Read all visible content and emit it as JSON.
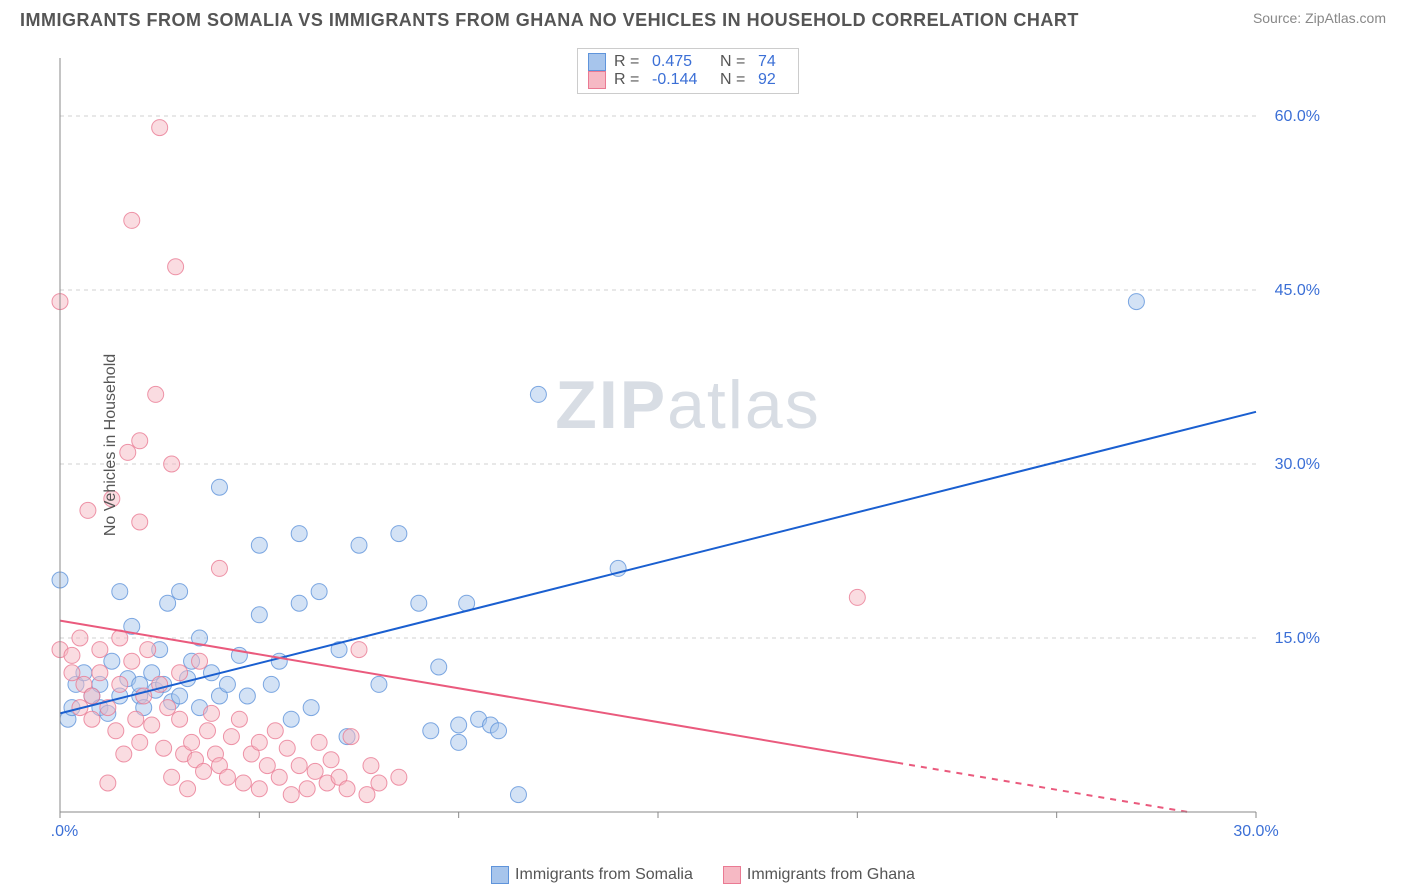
{
  "header": {
    "title": "IMMIGRANTS FROM SOMALIA VS IMMIGRANTS FROM GHANA NO VEHICLES IN HOUSEHOLD CORRELATION CHART",
    "source": "Source: ZipAtlas.com"
  },
  "watermark": {
    "bold": "ZIP",
    "rest": "atlas"
  },
  "ylabel": "No Vehicles in Household",
  "chart": {
    "type": "scatter",
    "xlim": [
      0,
      30
    ],
    "ylim": [
      0,
      65
    ],
    "xticks": [
      0,
      5,
      10,
      15,
      20,
      25,
      30
    ],
    "xtick_labels": [
      "0.0%",
      "",
      "",
      "",
      "",
      "",
      "30.0%"
    ],
    "yticks": [
      15,
      30,
      45,
      60
    ],
    "ytick_labels": [
      "15.0%",
      "30.0%",
      "45.0%",
      "60.0%"
    ],
    "background_color": "#ffffff",
    "grid_color": "#d0d0d0",
    "axis_color": "#888888",
    "tick_label_color": "#3b6fd6",
    "marker_radius": 8,
    "marker_opacity": 0.5,
    "line_width": 2
  },
  "series": [
    {
      "key": "somalia",
      "label": "Immigrants from Somalia",
      "color_fill": "#a7c5ec",
      "color_stroke": "#5f94db",
      "line_color": "#1a5fd0",
      "R": "0.475",
      "N": "74",
      "trend": {
        "x1": 0,
        "y1": 8.5,
        "x2": 30,
        "y2": 34.5,
        "dash_from_x": 30
      },
      "points": [
        [
          0,
          20
        ],
        [
          0.2,
          8
        ],
        [
          0.3,
          9
        ],
        [
          0.4,
          11
        ],
        [
          0.6,
          12
        ],
        [
          0.8,
          10
        ],
        [
          1,
          9
        ],
        [
          1,
          11
        ],
        [
          1.2,
          8.5
        ],
        [
          1.3,
          13
        ],
        [
          1.5,
          19
        ],
        [
          1.5,
          10
        ],
        [
          1.7,
          11.5
        ],
        [
          1.8,
          16
        ],
        [
          2,
          10
        ],
        [
          2,
          11
        ],
        [
          2.1,
          9
        ],
        [
          2.3,
          12
        ],
        [
          2.4,
          10.5
        ],
        [
          2.5,
          14
        ],
        [
          2.6,
          11
        ],
        [
          2.7,
          18
        ],
        [
          2.8,
          9.5
        ],
        [
          3,
          19
        ],
        [
          3,
          10
        ],
        [
          3.2,
          11.5
        ],
        [
          3.3,
          13
        ],
        [
          3.5,
          15
        ],
        [
          3.5,
          9
        ],
        [
          3.8,
          12
        ],
        [
          4,
          28
        ],
        [
          4,
          10
        ],
        [
          4.2,
          11
        ],
        [
          4.5,
          13.5
        ],
        [
          4.7,
          10
        ],
        [
          5,
          23
        ],
        [
          5,
          17
        ],
        [
          5.3,
          11
        ],
        [
          5.5,
          13
        ],
        [
          5.8,
          8
        ],
        [
          6,
          18
        ],
        [
          6,
          24
        ],
        [
          6.3,
          9
        ],
        [
          6.5,
          19
        ],
        [
          7,
          14
        ],
        [
          7.2,
          6.5
        ],
        [
          7.5,
          23
        ],
        [
          8,
          11
        ],
        [
          8.5,
          24
        ],
        [
          9,
          18
        ],
        [
          9.3,
          7
        ],
        [
          9.5,
          12.5
        ],
        [
          10,
          6
        ],
        [
          10,
          7.5
        ],
        [
          10.2,
          18
        ],
        [
          10.5,
          8
        ],
        [
          10.8,
          7.5
        ],
        [
          11,
          7
        ],
        [
          11.5,
          1.5
        ],
        [
          12,
          36
        ],
        [
          14,
          21
        ],
        [
          27,
          44
        ]
      ]
    },
    {
      "key": "ghana",
      "label": "Immigrants from Ghana",
      "color_fill": "#f6b9c4",
      "color_stroke": "#ea7a93",
      "line_color": "#ea5a7d",
      "R": "-0.144",
      "N": "92",
      "trend": {
        "x1": 0,
        "y1": 16.5,
        "x2": 30,
        "y2": -1,
        "dash_from_x": 21
      },
      "points": [
        [
          0,
          14
        ],
        [
          0,
          44
        ],
        [
          0.3,
          12
        ],
        [
          0.3,
          13.5
        ],
        [
          0.5,
          9
        ],
        [
          0.5,
          15
        ],
        [
          0.6,
          11
        ],
        [
          0.7,
          26
        ],
        [
          0.8,
          10
        ],
        [
          0.8,
          8
        ],
        [
          1,
          12
        ],
        [
          1,
          14
        ],
        [
          1.2,
          2.5
        ],
        [
          1.2,
          9
        ],
        [
          1.3,
          27
        ],
        [
          1.4,
          7
        ],
        [
          1.5,
          15
        ],
        [
          1.5,
          11
        ],
        [
          1.6,
          5
        ],
        [
          1.7,
          31
        ],
        [
          1.8,
          51
        ],
        [
          1.8,
          13
        ],
        [
          1.9,
          8
        ],
        [
          2,
          25
        ],
        [
          2,
          32
        ],
        [
          2,
          6
        ],
        [
          2.1,
          10
        ],
        [
          2.2,
          14
        ],
        [
          2.3,
          7.5
        ],
        [
          2.4,
          36
        ],
        [
          2.5,
          59
        ],
        [
          2.5,
          11
        ],
        [
          2.6,
          5.5
        ],
        [
          2.7,
          9
        ],
        [
          2.8,
          30
        ],
        [
          2.8,
          3
        ],
        [
          2.9,
          47
        ],
        [
          3,
          12
        ],
        [
          3,
          8
        ],
        [
          3.1,
          5
        ],
        [
          3.2,
          2
        ],
        [
          3.3,
          6
        ],
        [
          3.4,
          4.5
        ],
        [
          3.5,
          13
        ],
        [
          3.6,
          3.5
        ],
        [
          3.7,
          7
        ],
        [
          3.8,
          8.5
        ],
        [
          3.9,
          5
        ],
        [
          4,
          21
        ],
        [
          4,
          4
        ],
        [
          4.2,
          3
        ],
        [
          4.3,
          6.5
        ],
        [
          4.5,
          8
        ],
        [
          4.6,
          2.5
        ],
        [
          4.8,
          5
        ],
        [
          5,
          6
        ],
        [
          5,
          2
        ],
        [
          5.2,
          4
        ],
        [
          5.4,
          7
        ],
        [
          5.5,
          3
        ],
        [
          5.7,
          5.5
        ],
        [
          5.8,
          1.5
        ],
        [
          6,
          4
        ],
        [
          6.2,
          2
        ],
        [
          6.4,
          3.5
        ],
        [
          6.5,
          6
        ],
        [
          6.7,
          2.5
        ],
        [
          6.8,
          4.5
        ],
        [
          7,
          3
        ],
        [
          7.2,
          2
        ],
        [
          7.3,
          6.5
        ],
        [
          7.5,
          14
        ],
        [
          7.7,
          1.5
        ],
        [
          7.8,
          4
        ],
        [
          8,
          2.5
        ],
        [
          8.5,
          3
        ],
        [
          20,
          18.5
        ]
      ]
    }
  ],
  "bottom_legend": [
    {
      "label": "Immigrants from Somalia",
      "fill": "#a7c5ec",
      "stroke": "#5f94db"
    },
    {
      "label": "Immigrants from Ghana",
      "fill": "#f6b9c4",
      "stroke": "#ea7a93"
    }
  ]
}
